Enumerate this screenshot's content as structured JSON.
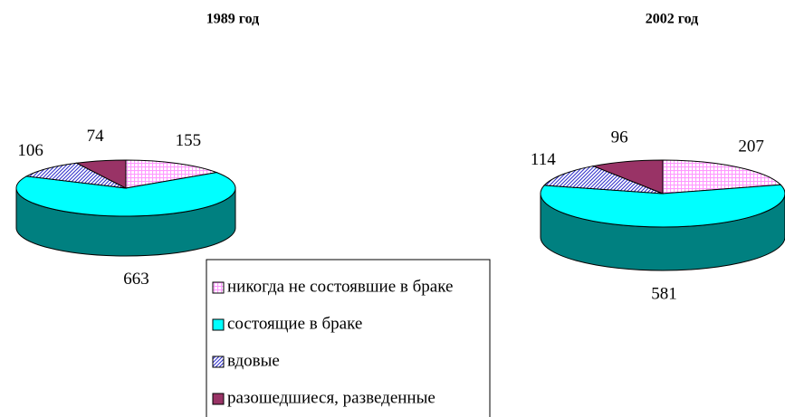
{
  "chart_data": [
    {
      "type": "pie",
      "title": "1989 год",
      "categories": [
        "никогда не состоявшие в браке",
        "состоящие в браке",
        "вдовые",
        "разошедшиеся, разведенные"
      ],
      "values": [
        155,
        663,
        106,
        74
      ],
      "colors": [
        "#ff99ff",
        "#00ffff",
        "#3333cc",
        "#993366"
      ],
      "patterns": [
        "grid",
        "solid",
        "diagonal",
        "solid"
      ],
      "legend": "bottom"
    },
    {
      "type": "pie",
      "title": "2002 год",
      "values": [
        207,
        581,
        114,
        96
      ],
      "colors": [
        "#ff99ff",
        "#00ffff",
        "#3333cc",
        "#993366"
      ],
      "patterns": [
        "grid",
        "solid",
        "diagonal",
        "solid"
      ]
    }
  ]
}
